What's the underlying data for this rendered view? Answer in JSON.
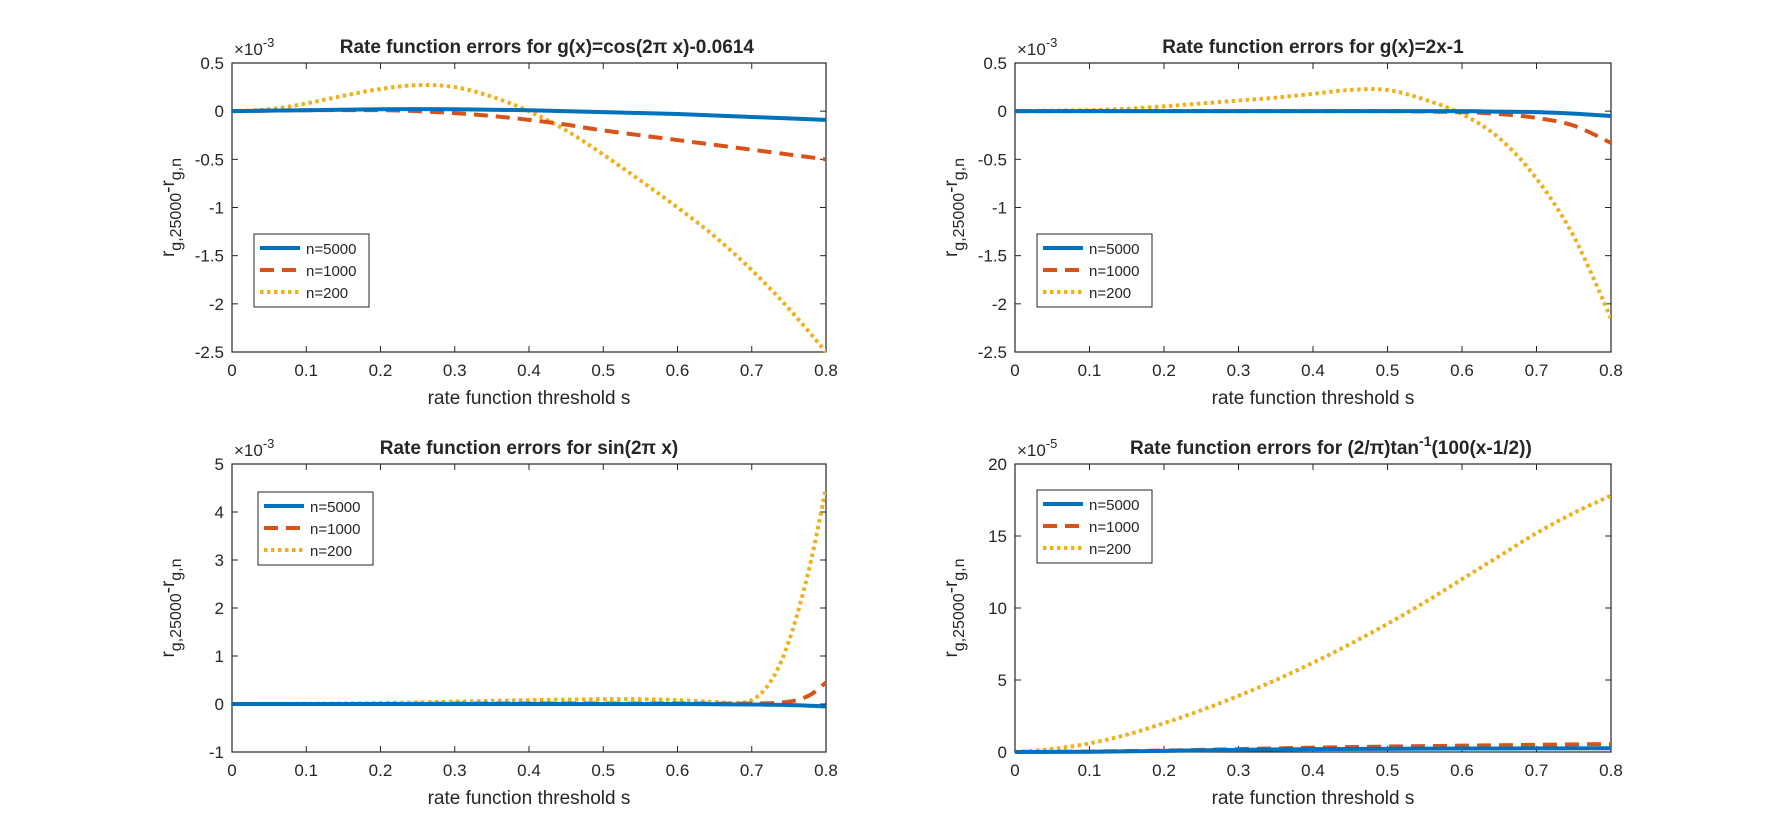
{
  "chart_data": [
    {
      "type": "line",
      "title": "Rate function errors for g(x)=cos(2π x)-0.0614",
      "xlabel": "rate function threshold s",
      "ylabel": "r_{g,25000}-r_{g,n}",
      "xlim": [
        0,
        0.8
      ],
      "ylim": [
        -2.5,
        0.5
      ],
      "yticks": [
        0.5,
        0,
        -0.5,
        -1,
        -1.5,
        -2,
        -2.5
      ],
      "ytick_labels": [
        "0.5",
        "0",
        "-0.5",
        "-1",
        "-1.5",
        "-2",
        "-2.5"
      ],
      "xticks": [
        0,
        0.1,
        0.2,
        0.3,
        0.4,
        0.5,
        0.6,
        0.7,
        0.8
      ],
      "xtick_labels": [
        "0",
        "0.1",
        "0.2",
        "0.3",
        "0.4",
        "0.5",
        "0.6",
        "0.7",
        "0.8"
      ],
      "exponent": "-3",
      "legend_position": "bottom-left",
      "series": [
        {
          "name": "n=5000",
          "x": [
            0,
            0.1,
            0.2,
            0.3,
            0.4,
            0.5,
            0.6,
            0.7,
            0.8
          ],
          "y": [
            0,
            0.01,
            0.02,
            0.02,
            0.01,
            -0.01,
            -0.03,
            -0.06,
            -0.09
          ]
        },
        {
          "name": "n=1000",
          "x": [
            0,
            0.1,
            0.2,
            0.25,
            0.3,
            0.35,
            0.4,
            0.45,
            0.5,
            0.6,
            0.7,
            0.8
          ],
          "y": [
            0,
            0.01,
            0.01,
            0.0,
            -0.02,
            -0.05,
            -0.09,
            -0.14,
            -0.2,
            -0.3,
            -0.4,
            -0.5
          ]
        },
        {
          "name": "n=200",
          "x": [
            0,
            0.05,
            0.1,
            0.15,
            0.2,
            0.25,
            0.3,
            0.35,
            0.4,
            0.45,
            0.5,
            0.55,
            0.6,
            0.65,
            0.7,
            0.75,
            0.8
          ],
          "y": [
            0,
            0.02,
            0.08,
            0.16,
            0.23,
            0.27,
            0.25,
            0.15,
            0.0,
            -0.2,
            -0.45,
            -0.72,
            -1.0,
            -1.3,
            -1.65,
            -2.05,
            -2.5
          ]
        }
      ]
    },
    {
      "type": "line",
      "title": "Rate function errors for g(x)=2x-1",
      "xlabel": "rate function threshold s",
      "ylabel": "r_{g,25000}-r_{g,n}",
      "xlim": [
        0,
        0.8
      ],
      "ylim": [
        -2.5,
        0.5
      ],
      "yticks": [
        0.5,
        0,
        -0.5,
        -1,
        -1.5,
        -2,
        -2.5
      ],
      "ytick_labels": [
        "0.5",
        "0",
        "-0.5",
        "-1",
        "-1.5",
        "-2",
        "-2.5"
      ],
      "xticks": [
        0,
        0.1,
        0.2,
        0.3,
        0.4,
        0.5,
        0.6,
        0.7,
        0.8
      ],
      "xtick_labels": [
        "0",
        "0.1",
        "0.2",
        "0.3",
        "0.4",
        "0.5",
        "0.6",
        "0.7",
        "0.8"
      ],
      "exponent": "-3",
      "legend_position": "bottom-left",
      "series": [
        {
          "name": "n=5000",
          "x": [
            0,
            0.1,
            0.2,
            0.3,
            0.4,
            0.5,
            0.6,
            0.65,
            0.7,
            0.75,
            0.8
          ],
          "y": [
            0,
            0,
            0,
            0.0,
            0.0,
            0.0,
            0.0,
            -0.005,
            -0.01,
            -0.025,
            -0.05
          ]
        },
        {
          "name": "n=1000",
          "x": [
            0,
            0.1,
            0.2,
            0.3,
            0.4,
            0.5,
            0.6,
            0.65,
            0.7,
            0.75,
            0.8
          ],
          "y": [
            0,
            0,
            0.0,
            0.0,
            0.0,
            0.0,
            -0.01,
            -0.03,
            -0.07,
            -0.15,
            -0.33
          ]
        },
        {
          "name": "n=200",
          "x": [
            0,
            0.05,
            0.1,
            0.15,
            0.2,
            0.25,
            0.3,
            0.35,
            0.4,
            0.45,
            0.5,
            0.55,
            0.6,
            0.65,
            0.7,
            0.75,
            0.8
          ],
          "y": [
            0,
            0.005,
            0.01,
            0.025,
            0.05,
            0.08,
            0.11,
            0.14,
            0.18,
            0.22,
            0.22,
            0.12,
            -0.03,
            -0.28,
            -0.7,
            -1.3,
            -2.15
          ]
        }
      ]
    },
    {
      "type": "line",
      "title": "Rate function errors for sin(2π x)",
      "xlabel": "rate function threshold s",
      "ylabel": "r_{g,25000}-r_{g,n}",
      "xlim": [
        0,
        0.8
      ],
      "ylim": [
        -1,
        5
      ],
      "yticks": [
        5,
        4,
        3,
        2,
        1,
        0,
        -1
      ],
      "ytick_labels": [
        "5",
        "4",
        "3",
        "2",
        "1",
        "0",
        "-1"
      ],
      "xticks": [
        0,
        0.1,
        0.2,
        0.3,
        0.4,
        0.5,
        0.6,
        0.7,
        0.8
      ],
      "xtick_labels": [
        "0",
        "0.1",
        "0.2",
        "0.3",
        "0.4",
        "0.5",
        "0.6",
        "0.7",
        "0.8"
      ],
      "exponent": "-3",
      "legend_position": "top-left",
      "series": [
        {
          "name": "n=5000",
          "x": [
            0,
            0.1,
            0.2,
            0.3,
            0.4,
            0.5,
            0.6,
            0.7,
            0.75,
            0.8
          ],
          "y": [
            0,
            0,
            0,
            0,
            0,
            0,
            0,
            -0.01,
            -0.02,
            -0.05
          ]
        },
        {
          "name": "n=1000",
          "x": [
            0,
            0.1,
            0.2,
            0.3,
            0.4,
            0.5,
            0.6,
            0.7,
            0.74,
            0.76,
            0.78,
            0.8
          ],
          "y": [
            0,
            0,
            0,
            0.01,
            0.01,
            0.01,
            0.01,
            0.01,
            0.03,
            0.08,
            0.2,
            0.45
          ]
        },
        {
          "name": "n=200",
          "x": [
            0,
            0.1,
            0.2,
            0.3,
            0.4,
            0.5,
            0.55,
            0.6,
            0.65,
            0.68,
            0.7,
            0.72,
            0.74,
            0.76,
            0.78,
            0.8
          ],
          "y": [
            0,
            0.005,
            0.02,
            0.05,
            0.08,
            0.1,
            0.1,
            0.08,
            0.04,
            0.02,
            0.08,
            0.35,
            0.9,
            1.8,
            3.0,
            4.5
          ]
        }
      ]
    },
    {
      "type": "line",
      "title": "Rate function errors for (2/π)tan⁻¹(100(x-1/2))",
      "xlabel": "rate function threshold s",
      "ylabel": "r_{g,25000}-r_{g,n}",
      "xlim": [
        0,
        0.8
      ],
      "ylim": [
        0,
        20
      ],
      "yticks": [
        20,
        15,
        10,
        5,
        0
      ],
      "ytick_labels": [
        "20",
        "15",
        "10",
        "5",
        "0"
      ],
      "xticks": [
        0,
        0.1,
        0.2,
        0.3,
        0.4,
        0.5,
        0.6,
        0.7,
        0.8
      ],
      "xtick_labels": [
        "0",
        "0.1",
        "0.2",
        "0.3",
        "0.4",
        "0.5",
        "0.6",
        "0.7",
        "0.8"
      ],
      "exponent": "-5",
      "legend_position": "top-left",
      "series": [
        {
          "name": "n=5000",
          "x": [
            0,
            0.1,
            0.2,
            0.3,
            0.4,
            0.5,
            0.6,
            0.7,
            0.8
          ],
          "y": [
            0,
            0.02,
            0.08,
            0.15,
            0.2,
            0.22,
            0.24,
            0.25,
            0.26
          ]
        },
        {
          "name": "n=1000",
          "x": [
            0,
            0.1,
            0.2,
            0.3,
            0.4,
            0.5,
            0.6,
            0.7,
            0.8
          ],
          "y": [
            0,
            0.03,
            0.1,
            0.2,
            0.3,
            0.38,
            0.44,
            0.5,
            0.55
          ]
        },
        {
          "name": "n=200",
          "x": [
            0,
            0.05,
            0.1,
            0.15,
            0.2,
            0.25,
            0.3,
            0.35,
            0.4,
            0.45,
            0.5,
            0.55,
            0.6,
            0.65,
            0.7,
            0.75,
            0.8
          ],
          "y": [
            0,
            0.2,
            0.6,
            1.2,
            2.0,
            2.9,
            3.9,
            5.0,
            6.2,
            7.5,
            8.9,
            10.4,
            12.0,
            13.6,
            15.2,
            16.6,
            17.8
          ]
        }
      ]
    }
  ],
  "legend_entries": [
    "n=5000",
    "n=1000",
    "n=200"
  ],
  "colors": {
    "n5000": "#0072BD",
    "n1000": "#D95319",
    "n200": "#EDB120",
    "axis": "#262626",
    "background": "#ffffff"
  }
}
